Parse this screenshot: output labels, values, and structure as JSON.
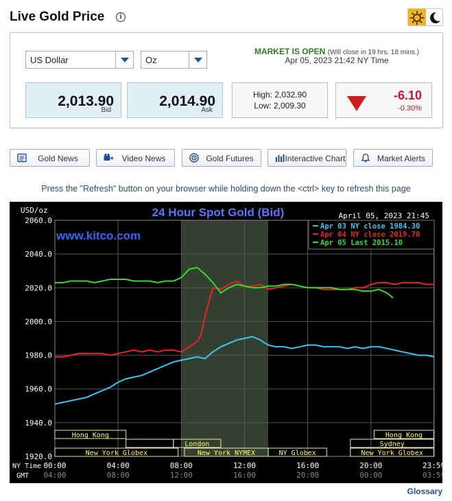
{
  "header": {
    "title": "Live Gold Price",
    "info_icon": "i",
    "theme_sun_icon": "sun-icon",
    "theme_moon_icon": "moon-icon"
  },
  "selectors": {
    "currency": "US Dollar",
    "unit": "Oz"
  },
  "market": {
    "status": "MARKET IS OPEN",
    "close_note": "(Will close in 19 hrs. 18 mins.)",
    "timestamp": "Apr 05, 2023 21:42 NY Time"
  },
  "prices": {
    "bid": "2,013.90",
    "bid_label": "Bid",
    "ask": "2,014.90",
    "ask_label": "Ask",
    "high": "High: 2,032.90",
    "low": "Low: 2,009.30",
    "change": "-6.10",
    "change_pct": "-0.30%",
    "down_color": "#d11d1d"
  },
  "buttons": [
    {
      "label": "Gold News",
      "icon": "newspaper-icon"
    },
    {
      "label": "Video News",
      "icon": "video-camera-icon"
    },
    {
      "label": "Gold Futures",
      "icon": "target-icon"
    },
    {
      "label": "Interactive Chart",
      "icon": "bar-chart-icon"
    },
    {
      "label": "Market Alerts",
      "icon": "bell-icon"
    }
  ],
  "refresh_note": "Press the \"Refresh\" button on your browser while holding down the <ctrl> key to refresh this page",
  "glossary": "Glossary",
  "chart_data": {
    "type": "line",
    "title": "24 Hour Spot Gold (Bid)",
    "timestamp": "April 05, 2023 21:45",
    "watermark": "www.kitco.com",
    "ylabel": "USD/oz",
    "ylim": [
      1920,
      2060
    ],
    "yticks": [
      "2060.0",
      "2040.0",
      "2020.0",
      "2000.0",
      "1980.0",
      "1960.0",
      "1940.0",
      "1920.0"
    ],
    "ytick_values": [
      2060,
      2040,
      2020,
      2000,
      1980,
      1960,
      1940,
      1920
    ],
    "xlim": [
      0,
      24
    ],
    "x_unit": "hours (NY time)",
    "xticks_ny": [
      "00:00",
      "04:00",
      "08:00",
      "12:00",
      "16:00",
      "20:00",
      "23:59"
    ],
    "xticks_gmt": [
      "04:00",
      "08:00",
      "12:00",
      "16:00",
      "20:00",
      "00:00",
      "03:59"
    ],
    "xtick_hours": [
      0,
      4,
      8,
      12,
      16,
      20,
      23.98
    ],
    "axis_row_ny": "NY Time",
    "axis_row_gmt": "GMT",
    "grid": true,
    "legend_placement": "top-right",
    "highlight_hours": [
      8,
      13.5
    ],
    "colors": {
      "background": "#000000",
      "grid": "#555555",
      "title": "#5577ff",
      "watermark": "#3366ff",
      "session_text": "#ffff66",
      "session_box": "#f2e6b0",
      "highlight": "#33402f"
    },
    "series": [
      {
        "name": "Apr 03 NY close 1984.30",
        "color": "#33c8f0",
        "x": [
          0,
          0.5,
          1,
          1.5,
          2,
          2.5,
          3,
          3.5,
          4,
          4.5,
          5,
          5.5,
          6,
          6.5,
          7,
          7.5,
          8,
          8.5,
          9,
          9.5,
          10,
          10.5,
          11,
          11.5,
          12,
          12.5,
          13,
          13.5,
          14,
          14.5,
          15,
          15.5,
          16,
          16.5,
          17,
          17.5,
          18,
          18.5,
          19,
          19.5,
          20,
          20.5,
          21,
          21.5,
          22,
          22.5,
          23,
          23.5,
          24
        ],
        "y": [
          1951,
          1952,
          1953,
          1954,
          1955,
          1957,
          1959,
          1961,
          1964,
          1966,
          1967,
          1968,
          1970,
          1972,
          1974,
          1976,
          1977,
          1978,
          1979,
          1978,
          1982,
          1985,
          1987,
          1989,
          1990,
          1991,
          1989,
          1986,
          1985,
          1985,
          1984,
          1985,
          1986,
          1986,
          1985,
          1985,
          1985,
          1984,
          1985,
          1984,
          1985,
          1985,
          1984,
          1983,
          1982,
          1981,
          1980,
          1980,
          1979
        ]
      },
      {
        "name": "Apr 04 NY close 2019.70",
        "color": "#ee2222",
        "x": [
          0,
          0.5,
          1,
          1.5,
          2,
          2.5,
          3,
          3.5,
          4,
          4.5,
          5,
          5.5,
          6,
          6.5,
          7,
          7.5,
          8,
          8.5,
          9,
          9.25,
          9.5,
          9.75,
          10,
          10.5,
          11,
          11.5,
          12,
          12.5,
          13,
          13.5,
          14,
          14.5,
          15,
          15.5,
          16,
          16.5,
          17,
          17.5,
          18,
          18.5,
          19,
          19.5,
          20,
          20.5,
          21,
          21.5,
          22,
          22.5,
          23,
          23.5,
          24
        ],
        "y": [
          1979,
          1979,
          1980,
          1981,
          1981,
          1981,
          1981,
          1980,
          1981,
          1982,
          1983,
          1982,
          1983,
          1982,
          1983,
          1983,
          1982,
          1985,
          1988,
          1992,
          2003,
          2012,
          2020,
          2019,
          2022,
          2024,
          2021,
          2021,
          2022,
          2019,
          2020,
          2021,
          2022,
          2021,
          2020,
          2020,
          2019,
          2019,
          2019,
          2019,
          2020,
          2020,
          2022,
          2023,
          2023,
          2022,
          2023,
          2023,
          2023,
          2022,
          2022
        ]
      },
      {
        "name": "Apr 05 Last 2015.10",
        "color": "#33dd33",
        "x": [
          0,
          0.5,
          1,
          1.5,
          2,
          2.5,
          3,
          3.5,
          4,
          4.5,
          5,
          5.5,
          6,
          6.5,
          7,
          7.5,
          8,
          8.5,
          9,
          9.5,
          10,
          10.5,
          11,
          11.5,
          12,
          12.5,
          13,
          13.5,
          14,
          14.5,
          15,
          15.5,
          16,
          16.5,
          17,
          17.5,
          18,
          18.5,
          19,
          19.5,
          20,
          20.5,
          21,
          21.4
        ],
        "y": [
          2023,
          2023,
          2024,
          2024,
          2024,
          2023,
          2024,
          2025,
          2025,
          2025,
          2024,
          2024,
          2024,
          2023,
          2024,
          2024,
          2026,
          2031,
          2032,
          2028,
          2023,
          2017,
          2020,
          2022,
          2021,
          2020,
          2020,
          2021,
          2021,
          2022,
          2022,
          2021,
          2020,
          2020,
          2020,
          2020,
          2019,
          2019,
          2019,
          2018,
          2018,
          2019,
          2017,
          2014
        ]
      }
    ],
    "sessions": [
      {
        "label": "Hong Kong",
        "start": 0,
        "end": 4.5,
        "row": 1
      },
      {
        "label": "",
        "start": 4.5,
        "end": 7.5,
        "row": 2
      },
      {
        "label": "London",
        "start": 7.5,
        "end": 10.5,
        "row": 2
      },
      {
        "label": "New York Globex",
        "start": 0,
        "end": 7.8,
        "row": 3
      },
      {
        "label": "New York NYMEX",
        "start": 8.2,
        "end": 13.5,
        "row": 3
      },
      {
        "label": "NY Globex",
        "start": 13.5,
        "end": 17.2,
        "row": 3
      },
      {
        "label": "Hong Kong",
        "start": 20.2,
        "end": 23.98,
        "row": 1
      },
      {
        "label": "Sydney",
        "start": 18.7,
        "end": 23.98,
        "row": 2
      },
      {
        "label": "New York Globex",
        "start": 18.7,
        "end": 23.98,
        "row": 3
      }
    ]
  }
}
